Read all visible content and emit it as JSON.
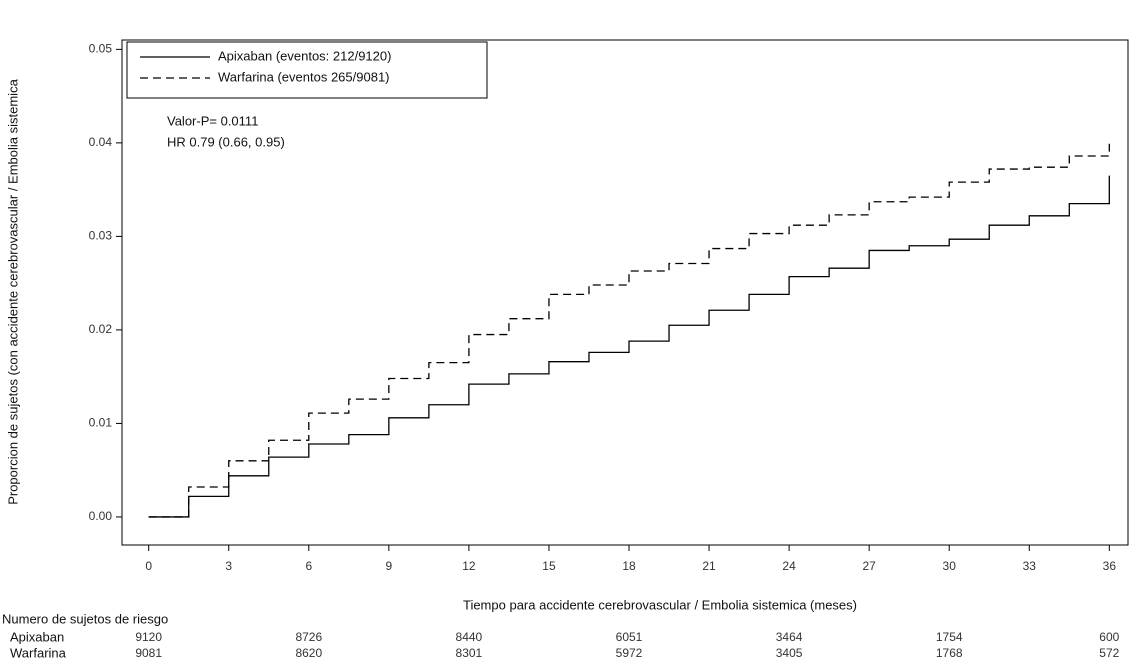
{
  "chart_data": {
    "type": "line",
    "step": true,
    "y_label": "Proporcion de sujetos (con accidente cerebrovascular / Embolia sistemica",
    "x_label": "Tiempo para accidente cerebrovascular / Embolia sistemica  (meses)",
    "x": [
      0,
      1.5,
      3,
      4.5,
      6,
      7.5,
      9,
      10.5,
      12,
      13.5,
      15,
      16.5,
      18,
      19.5,
      21,
      22.5,
      24,
      25.5,
      27,
      28.5,
      30,
      31.5,
      33,
      34.5,
      36
    ],
    "series": [
      {
        "name": "Apixaban (eventos: 212/9120)",
        "color": "#000000",
        "dash": "none",
        "values": [
          0,
          0.0022,
          0.0044,
          0.0064,
          0.0078,
          0.0088,
          0.0106,
          0.012,
          0.0142,
          0.0153,
          0.0166,
          0.0176,
          0.0188,
          0.0205,
          0.0221,
          0.0238,
          0.0257,
          0.0266,
          0.0285,
          0.029,
          0.0297,
          0.0312,
          0.0322,
          0.0335,
          0.0365
        ]
      },
      {
        "name": "Warfarina (eventos 265/9081)",
        "color": "#000000",
        "dash": "8 5",
        "values": [
          0,
          0.0032,
          0.006,
          0.0082,
          0.0111,
          0.0126,
          0.0148,
          0.0165,
          0.0195,
          0.0212,
          0.0238,
          0.0248,
          0.0263,
          0.0271,
          0.0287,
          0.0303,
          0.0312,
          0.0323,
          0.0337,
          0.0342,
          0.0358,
          0.0372,
          0.0374,
          0.0386,
          0.0399
        ]
      }
    ],
    "xlim": [
      -1,
      36.7
    ],
    "ylim": [
      -0.003,
      0.051
    ],
    "xticks": [
      0,
      3,
      6,
      9,
      12,
      15,
      18,
      21,
      24,
      27,
      30,
      33,
      36
    ],
    "yticks": [
      {
        "value": 0,
        "label": "0.00"
      },
      {
        "value": 0.01,
        "label": "0.01"
      },
      {
        "value": 0.02,
        "label": "0.02"
      },
      {
        "value": 0.03,
        "label": "0.03"
      },
      {
        "value": 0.04,
        "label": "0.04"
      },
      {
        "value": 0.05,
        "label": "0.05"
      }
    ],
    "legend": "top-left",
    "annotations": [
      "Valor-P= 0.0111",
      "HR 0.79 (0.66, 0.95)"
    ],
    "risk_table": {
      "title": "Numero de sujetos de riesgo",
      "times": [
        0,
        6,
        12,
        18,
        24,
        30,
        36
      ],
      "rows": [
        {
          "name": "Apixaban",
          "values": [
            9120,
            8726,
            8440,
            6051,
            3464,
            1754,
            600
          ]
        },
        {
          "name": "Warfarina",
          "values": [
            9081,
            8620,
            8301,
            5972,
            3405,
            1768,
            572
          ]
        }
      ]
    }
  }
}
